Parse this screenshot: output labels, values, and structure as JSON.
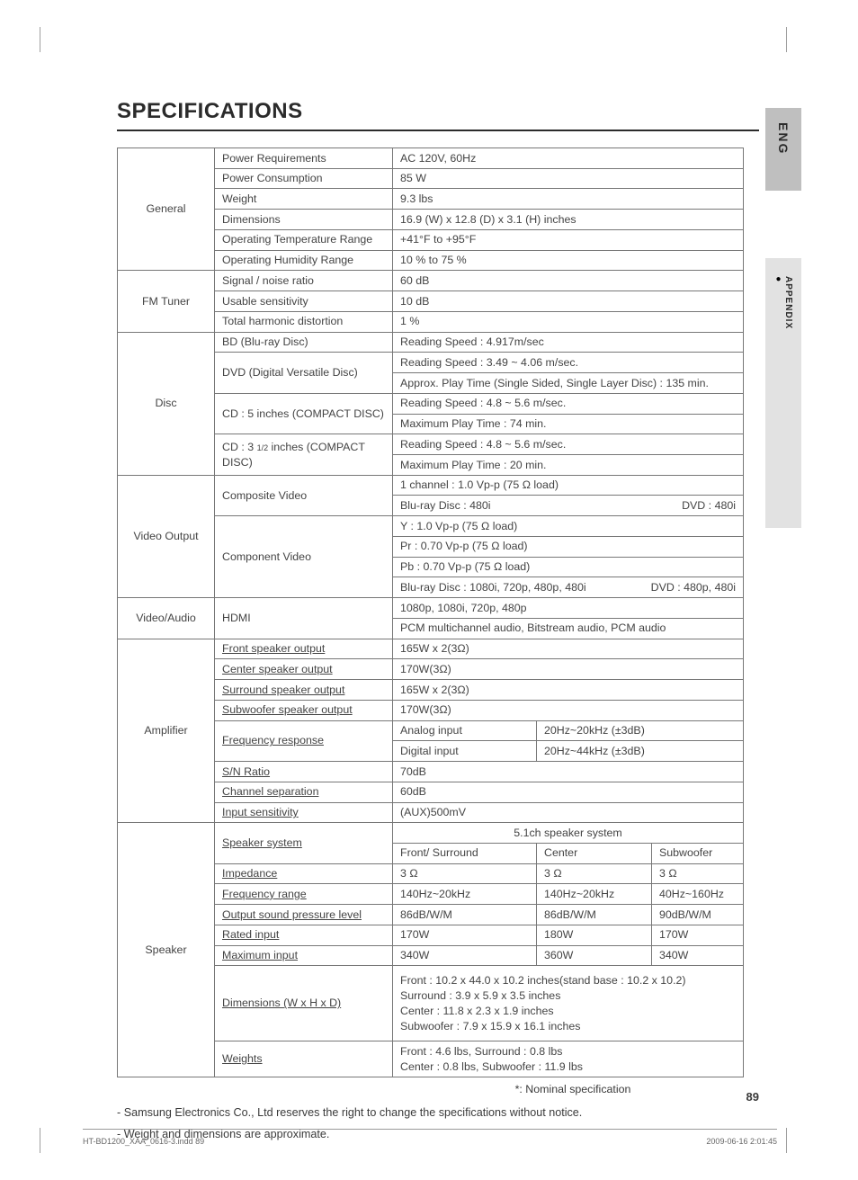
{
  "page_title": "SPECIFICATIONS",
  "sidebar": {
    "lang": "ENG",
    "section": "APPENDIX"
  },
  "sections": {
    "general": {
      "name": "General",
      "rows": [
        {
          "label": "Power Requirements",
          "value": "AC 120V, 60Hz"
        },
        {
          "label": "Power Consumption",
          "value": "85 W"
        },
        {
          "label": "Weight",
          "value": "9.3 lbs"
        },
        {
          "label": "Dimensions",
          "value": "16.9 (W) x 12.8 (D) x 3.1 (H) inches"
        },
        {
          "label": "Operating Temperature Range",
          "value": "+41°F to +95°F"
        },
        {
          "label": "Operating Humidity Range",
          "value": "10 % to 75 %"
        }
      ]
    },
    "fm_tuner": {
      "name": "FM Tuner",
      "rows": [
        {
          "label": "Signal / noise ratio",
          "value": "60 dB"
        },
        {
          "label": "Usable sensitivity",
          "value": "10 dB"
        },
        {
          "label": "Total harmonic distortion",
          "value": "1 %"
        }
      ]
    },
    "disc": {
      "name": "Disc",
      "bd": {
        "label": "BD (Blu-ray Disc)",
        "value": "Reading Speed : 4.917m/sec"
      },
      "dvd": {
        "label": "DVD (Digital Versatile Disc)",
        "rows": [
          "Reading Speed : 3.49 ~ 4.06 m/sec.",
          "Approx. Play Time (Single Sided, Single Layer Disc) : 135 min."
        ]
      },
      "cd5": {
        "label": "CD : 5 inches (COMPACT DISC)",
        "rows": [
          "Reading Speed : 4.8 ~ 5.6 m/sec.",
          "Maximum Play Time : 74 min."
        ]
      },
      "cd3": {
        "label": "CD : 3 1/2 inches (COMPACT DISC)",
        "rows": [
          "Reading Speed : 4.8 ~ 5.6 m/sec.",
          "Maximum Play Time : 20 min."
        ]
      }
    },
    "video_output": {
      "name": "Video Output",
      "composite": {
        "label": "Composite Video",
        "row1": "1 channel : 1.0 Vp-p (75 Ω load)",
        "row2_left": "Blu-ray Disc : 480i",
        "row2_right": "DVD : 480i"
      },
      "component": {
        "label": "Component Video",
        "rows": [
          "Y : 1.0 Vp-p (75 Ω load)",
          "Pr : 0.70 Vp-p (75 Ω load)",
          "Pb : 0.70 Vp-p (75 Ω load)"
        ],
        "row4_left": "Blu-ray Disc : 1080i, 720p, 480p, 480i",
        "row4_right": "DVD : 480p, 480i"
      }
    },
    "video_audio": {
      "name": "Video/Audio",
      "hdmi": {
        "label": "HDMI",
        "rows": [
          "1080p, 1080i, 720p, 480p",
          "PCM multichannel audio, Bitstream audio, PCM audio"
        ]
      }
    },
    "amplifier": {
      "name": "Amplifier",
      "simple": [
        {
          "label": "Front speaker output",
          "value": "165W x 2(3Ω)"
        },
        {
          "label": "Center speaker output",
          "value": "170W(3Ω)"
        },
        {
          "label": "Surround speaker output",
          "value": "165W x 2(3Ω)"
        },
        {
          "label": "Subwoofer speaker output",
          "value": "170W(3Ω)"
        }
      ],
      "freq": {
        "label": "Frequency response",
        "analog": {
          "k": "Analog input",
          "v": "20Hz~20kHz (±3dB)"
        },
        "digital": {
          "k": "Digital input",
          "v": "20Hz~44kHz (±3dB)"
        }
      },
      "simple2": [
        {
          "label": "S/N Ratio",
          "value": "70dB"
        },
        {
          "label": "Channel separation",
          "value": "60dB"
        },
        {
          "label": "Input sensitivity",
          "value": "(AUX)500mV"
        }
      ]
    },
    "speaker": {
      "name": "Speaker",
      "sys": {
        "label": "Speaker system",
        "header": "5.1ch speaker system",
        "cols": [
          "Front/ Surround",
          "Center",
          "Subwoofer"
        ]
      },
      "grid": [
        {
          "label": "Impedance",
          "c": [
            "3 Ω",
            "3 Ω",
            "3 Ω"
          ]
        },
        {
          "label": "Frequency range",
          "c": [
            "140Hz~20kHz",
            "140Hz~20kHz",
            "40Hz~160Hz"
          ]
        },
        {
          "label": "Output sound pressure level",
          "c": [
            "86dB/W/M",
            "86dB/W/M",
            "90dB/W/M"
          ]
        },
        {
          "label": "Rated input",
          "c": [
            "170W",
            "180W",
            "170W"
          ]
        },
        {
          "label": "Maximum input",
          "c": [
            "340W",
            "360W",
            "340W"
          ]
        }
      ],
      "dims": {
        "label": "Dimensions  (W x H x D)",
        "lines": [
          "Front : 10.2 x 44.0 x 10.2 inches(stand base : 10.2 x 10.2)",
          "Surround : 3.9 x 5.9 x 3.5 inches",
          "Center : 11.8 x 2.3 x 1.9 inches",
          "Subwoofer : 7.9 x 15.9 x 16.1 inches"
        ]
      },
      "weights": {
        "label": "Weights",
        "lines": [
          "Front : 4.6 lbs, Surround : 0.8 lbs",
          "Center : 0.8 lbs,  Subwoofer : 11.9 lbs"
        ]
      }
    }
  },
  "nominal_note": "*: Nominal specification",
  "footnotes": [
    "- Samsung Electronics Co., Ltd reserves the right to change the specifications without notice.",
    "- Weight and dimensions are approximate."
  ],
  "page_number": "89",
  "footer": {
    "file": "HT-BD1200_XAA_0616-3.indd   89",
    "datetime": "2009-06-16   2:01:45"
  }
}
